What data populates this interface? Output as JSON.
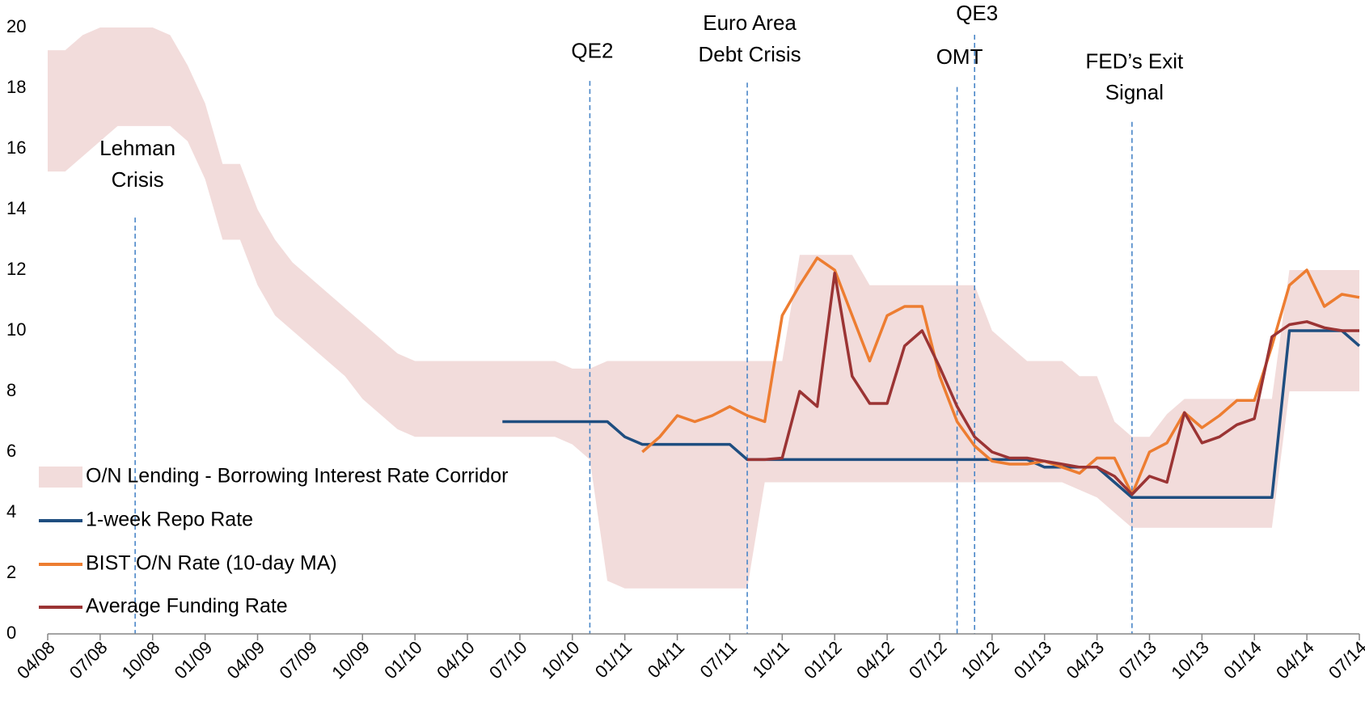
{
  "chart_data": {
    "type": "line",
    "categories": [
      "04/08",
      null,
      null,
      "07/08",
      null,
      null,
      "10/08",
      null,
      null,
      "01/09",
      null,
      null,
      "04/09",
      null,
      null,
      "07/09",
      null,
      null,
      "10/09",
      null,
      null,
      "01/10",
      null,
      null,
      "04/10",
      null,
      null,
      "07/10",
      null,
      null,
      "10/10",
      null,
      null,
      "01/11",
      null,
      null,
      "04/11",
      null,
      null,
      "07/11",
      null,
      null,
      "10/11",
      null,
      null,
      "01/12",
      null,
      null,
      "04/12",
      null,
      null,
      "07/12",
      null,
      null,
      "10/12",
      null,
      null,
      "01/13",
      null,
      null,
      "04/13",
      null,
      null,
      "07/13",
      null,
      null,
      "10/13",
      null,
      null,
      "01/14",
      null,
      null,
      "04/14",
      null,
      null,
      "07/14"
    ],
    "series": [
      {
        "name": "O/N Lending - Borrowing Interest Rate Corridor",
        "style": "band",
        "color": "#f2dcdb",
        "values": [
          19.25,
          19.25,
          19.75,
          20,
          20,
          20,
          20,
          19.75,
          18.75,
          17.5,
          15.5,
          15.5,
          14,
          13,
          12.25,
          11.75,
          11.25,
          10.75,
          10.25,
          9.75,
          9.25,
          9,
          9,
          9,
          9,
          9,
          9,
          9,
          9,
          9,
          8.75,
          8.75,
          9,
          9,
          9,
          9,
          9,
          9,
          9,
          9,
          9,
          9,
          9,
          12.5,
          12.5,
          12.5,
          12.5,
          11.5,
          11.5,
          11.5,
          11.5,
          11.5,
          11.5,
          11.5,
          10,
          9.5,
          9,
          9,
          9,
          8.5,
          8.5,
          7,
          6.5,
          6.5,
          7.25,
          7.75,
          7.75,
          7.75,
          7.75,
          7.75,
          7.75,
          12,
          12,
          12,
          12,
          12
        ],
        "lower": [
          15.25,
          15.25,
          15.75,
          16.25,
          16.75,
          16.75,
          16.75,
          16.75,
          16.25,
          15,
          13,
          13,
          11.5,
          10.5,
          10,
          9.5,
          9,
          8.5,
          7.75,
          7.25,
          6.75,
          6.5,
          6.5,
          6.5,
          6.5,
          6.5,
          6.5,
          6.5,
          6.5,
          6.5,
          6.25,
          5.75,
          1.75,
          1.5,
          1.5,
          1.5,
          1.5,
          1.5,
          1.5,
          1.5,
          1.5,
          5,
          5,
          5,
          5,
          5,
          5,
          5,
          5,
          5,
          5,
          5,
          5,
          5,
          5,
          5,
          5,
          5,
          5,
          4.75,
          4.5,
          4,
          3.5,
          3.5,
          3.5,
          3.5,
          3.5,
          3.5,
          3.5,
          3.5,
          3.5,
          8,
          8,
          8,
          8,
          8
        ]
      },
      {
        "name": "1-week Repo Rate",
        "style": "line",
        "color": "#1f4e80",
        "values": [
          null,
          null,
          null,
          null,
          null,
          null,
          null,
          null,
          null,
          null,
          null,
          null,
          null,
          null,
          null,
          null,
          null,
          null,
          null,
          null,
          null,
          null,
          null,
          null,
          null,
          null,
          7,
          7,
          7,
          7,
          7,
          7,
          7,
          6.5,
          6.25,
          6.25,
          6.25,
          6.25,
          6.25,
          6.25,
          5.75,
          5.75,
          5.75,
          5.75,
          5.75,
          5.75,
          5.75,
          5.75,
          5.75,
          5.75,
          5.75,
          5.75,
          5.75,
          5.75,
          5.75,
          5.75,
          5.75,
          5.5,
          5.5,
          5.5,
          5.5,
          5,
          4.5,
          4.5,
          4.5,
          4.5,
          4.5,
          4.5,
          4.5,
          4.5,
          4.5,
          10,
          10,
          10,
          10,
          9.5
        ]
      },
      {
        "name": "BIST O/N Rate (10-day MA)",
        "style": "line",
        "color": "#ed7d31",
        "values": [
          null,
          null,
          null,
          null,
          null,
          null,
          null,
          null,
          null,
          null,
          null,
          null,
          null,
          null,
          null,
          null,
          null,
          null,
          null,
          null,
          null,
          null,
          null,
          null,
          null,
          null,
          null,
          null,
          null,
          null,
          null,
          null,
          null,
          null,
          6.0,
          6.5,
          7.2,
          7.0,
          7.2,
          7.5,
          7.2,
          7.0,
          10.5,
          11.5,
          12.4,
          12.0,
          10.5,
          9.0,
          10.5,
          10.8,
          10.8,
          8.5,
          7.0,
          6.2,
          5.7,
          5.6,
          5.6,
          5.7,
          5.5,
          5.3,
          5.8,
          5.8,
          4.6,
          6.0,
          6.3,
          7.3,
          6.8,
          7.2,
          7.7,
          7.7,
          9.5,
          11.5,
          12.0,
          10.8,
          11.2,
          11.1
        ]
      },
      {
        "name": "Average Funding Rate",
        "style": "line",
        "color": "#9b3434",
        "values": [
          null,
          null,
          null,
          null,
          null,
          null,
          null,
          null,
          null,
          null,
          null,
          null,
          null,
          null,
          null,
          null,
          null,
          null,
          null,
          null,
          null,
          null,
          null,
          null,
          null,
          null,
          null,
          null,
          null,
          null,
          null,
          null,
          null,
          null,
          null,
          null,
          null,
          null,
          null,
          null,
          5.75,
          5.75,
          5.8,
          8.0,
          7.5,
          11.9,
          8.5,
          7.6,
          7.6,
          9.5,
          10.0,
          8.8,
          7.5,
          6.5,
          6.0,
          5.8,
          5.8,
          5.7,
          5.6,
          5.5,
          5.5,
          5.2,
          4.6,
          5.2,
          5.0,
          7.3,
          6.3,
          6.5,
          6.9,
          7.1,
          9.8,
          10.2,
          10.3,
          10.1,
          10.0,
          10.0
        ]
      }
    ],
    "annotations": [
      {
        "lines": [
          "Lehman",
          "Crisis"
        ],
        "date": "09/08"
      },
      {
        "lines": [
          "QE2"
        ],
        "date": "11/10"
      },
      {
        "lines": [
          "Euro Area",
          "Debt Crisis"
        ],
        "date": "08/11"
      },
      {
        "lines": [
          "OMT"
        ],
        "date": "08/12"
      },
      {
        "lines": [
          "QE3"
        ],
        "date": "09/12"
      },
      {
        "lines": [
          "FED’s Exit",
          "Signal"
        ],
        "date": "06/13"
      }
    ],
    "annotation_color": "#4a86c8",
    "ylim": [
      0,
      20
    ],
    "yticks": [
      0,
      2,
      4,
      6,
      8,
      10,
      12,
      14,
      16,
      18,
      20
    ],
    "grid": false,
    "legend": "lower-left"
  }
}
